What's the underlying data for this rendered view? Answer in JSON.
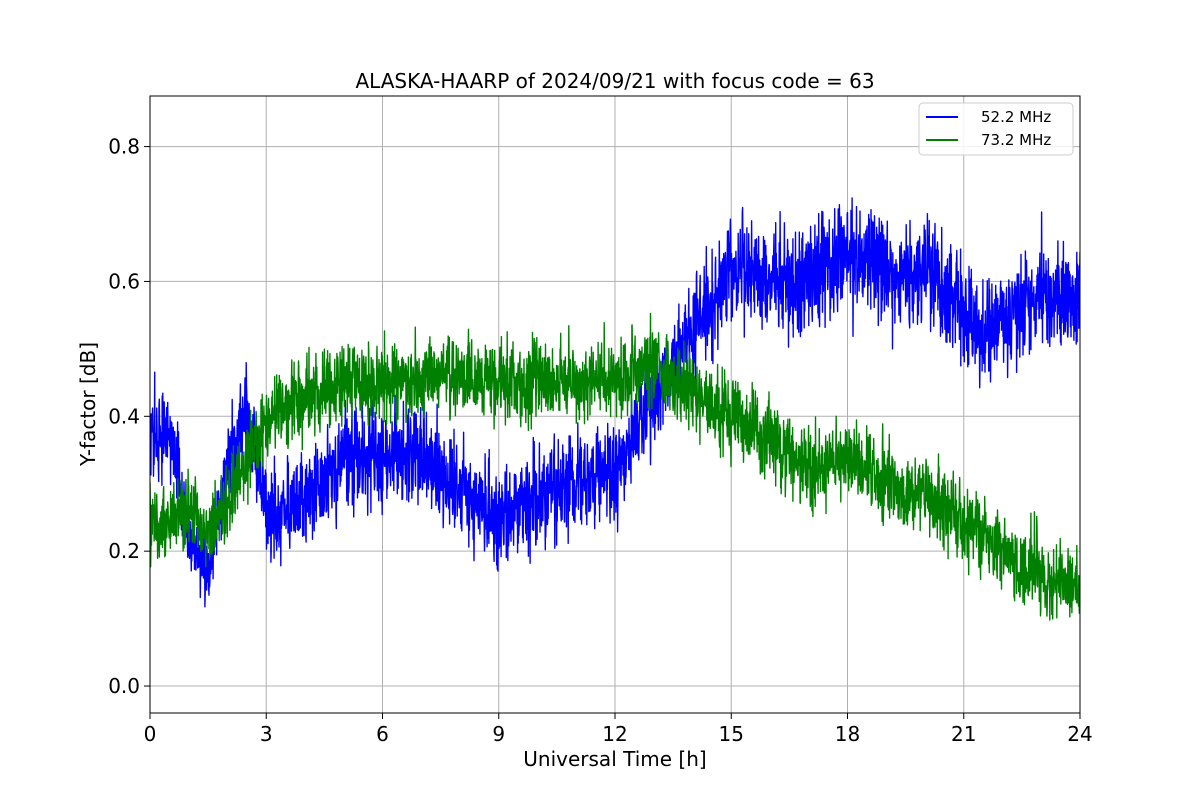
{
  "chart_data": {
    "type": "line",
    "title": "ALASKA-HAARP of 2024/09/21 with focus code = 63",
    "xlabel": "Universal Time [h]",
    "ylabel": "Y-factor [dB]",
    "xlim": [
      0,
      24
    ],
    "ylim": [
      -0.04,
      0.875
    ],
    "x_ticks": [
      0,
      3,
      6,
      9,
      12,
      15,
      18,
      21,
      24
    ],
    "x_tick_labels": [
      "0",
      "3",
      "6",
      "9",
      "12",
      "15",
      "18",
      "21",
      "24"
    ],
    "y_ticks": [
      0.0,
      0.2,
      0.4,
      0.6,
      0.8
    ],
    "y_tick_labels": [
      "0.0",
      "0.2",
      "0.4",
      "0.6",
      "0.8"
    ],
    "grid": true,
    "legend_position": "top-right",
    "series": [
      {
        "name": "52.2 MHz",
        "color": "#0000ff",
        "x": [
          0,
          0.5,
          1.0,
          1.5,
          2.0,
          2.5,
          3.0,
          4.0,
          5.0,
          6.0,
          7.0,
          8.0,
          9.0,
          10.0,
          11.0,
          12.0,
          13.0,
          14.0,
          15.0,
          16.0,
          17.0,
          18.0,
          19.0,
          20.0,
          21.0,
          21.5,
          22.0,
          23.0,
          24.0
        ],
        "y": [
          0.36,
          0.38,
          0.22,
          0.17,
          0.33,
          0.4,
          0.26,
          0.27,
          0.34,
          0.34,
          0.35,
          0.29,
          0.25,
          0.28,
          0.31,
          0.31,
          0.43,
          0.53,
          0.62,
          0.6,
          0.6,
          0.65,
          0.61,
          0.62,
          0.55,
          0.52,
          0.54,
          0.58,
          0.57
        ],
        "noise": [
          0.09,
          0.08,
          0.07,
          0.07,
          0.08,
          0.08,
          0.08,
          0.08,
          0.09,
          0.09,
          0.09,
          0.09,
          0.09,
          0.09,
          0.09,
          0.08,
          0.09,
          0.09,
          0.1,
          0.09,
          0.1,
          0.1,
          0.09,
          0.09,
          0.09,
          0.09,
          0.09,
          0.09,
          0.09
        ]
      },
      {
        "name": "73.2 MHz",
        "color": "#008000",
        "x": [
          0,
          0.5,
          1.0,
          1.5,
          2.0,
          2.5,
          3.0,
          4.0,
          5.0,
          6.0,
          7.0,
          8.0,
          9.0,
          10.0,
          11.0,
          12.0,
          13.0,
          14.0,
          15.0,
          16.0,
          17.0,
          18.0,
          19.0,
          20.0,
          21.0,
          22.0,
          23.0,
          24.0
        ],
        "y": [
          0.24,
          0.24,
          0.26,
          0.22,
          0.27,
          0.34,
          0.4,
          0.43,
          0.45,
          0.45,
          0.46,
          0.46,
          0.45,
          0.45,
          0.45,
          0.46,
          0.47,
          0.44,
          0.4,
          0.37,
          0.32,
          0.34,
          0.3,
          0.28,
          0.24,
          0.2,
          0.16,
          0.15
        ],
        "noise": [
          0.07,
          0.07,
          0.07,
          0.07,
          0.07,
          0.07,
          0.07,
          0.07,
          0.07,
          0.07,
          0.07,
          0.07,
          0.07,
          0.07,
          0.07,
          0.07,
          0.07,
          0.07,
          0.07,
          0.07,
          0.07,
          0.07,
          0.07,
          0.07,
          0.07,
          0.07,
          0.07,
          0.07
        ]
      }
    ]
  }
}
